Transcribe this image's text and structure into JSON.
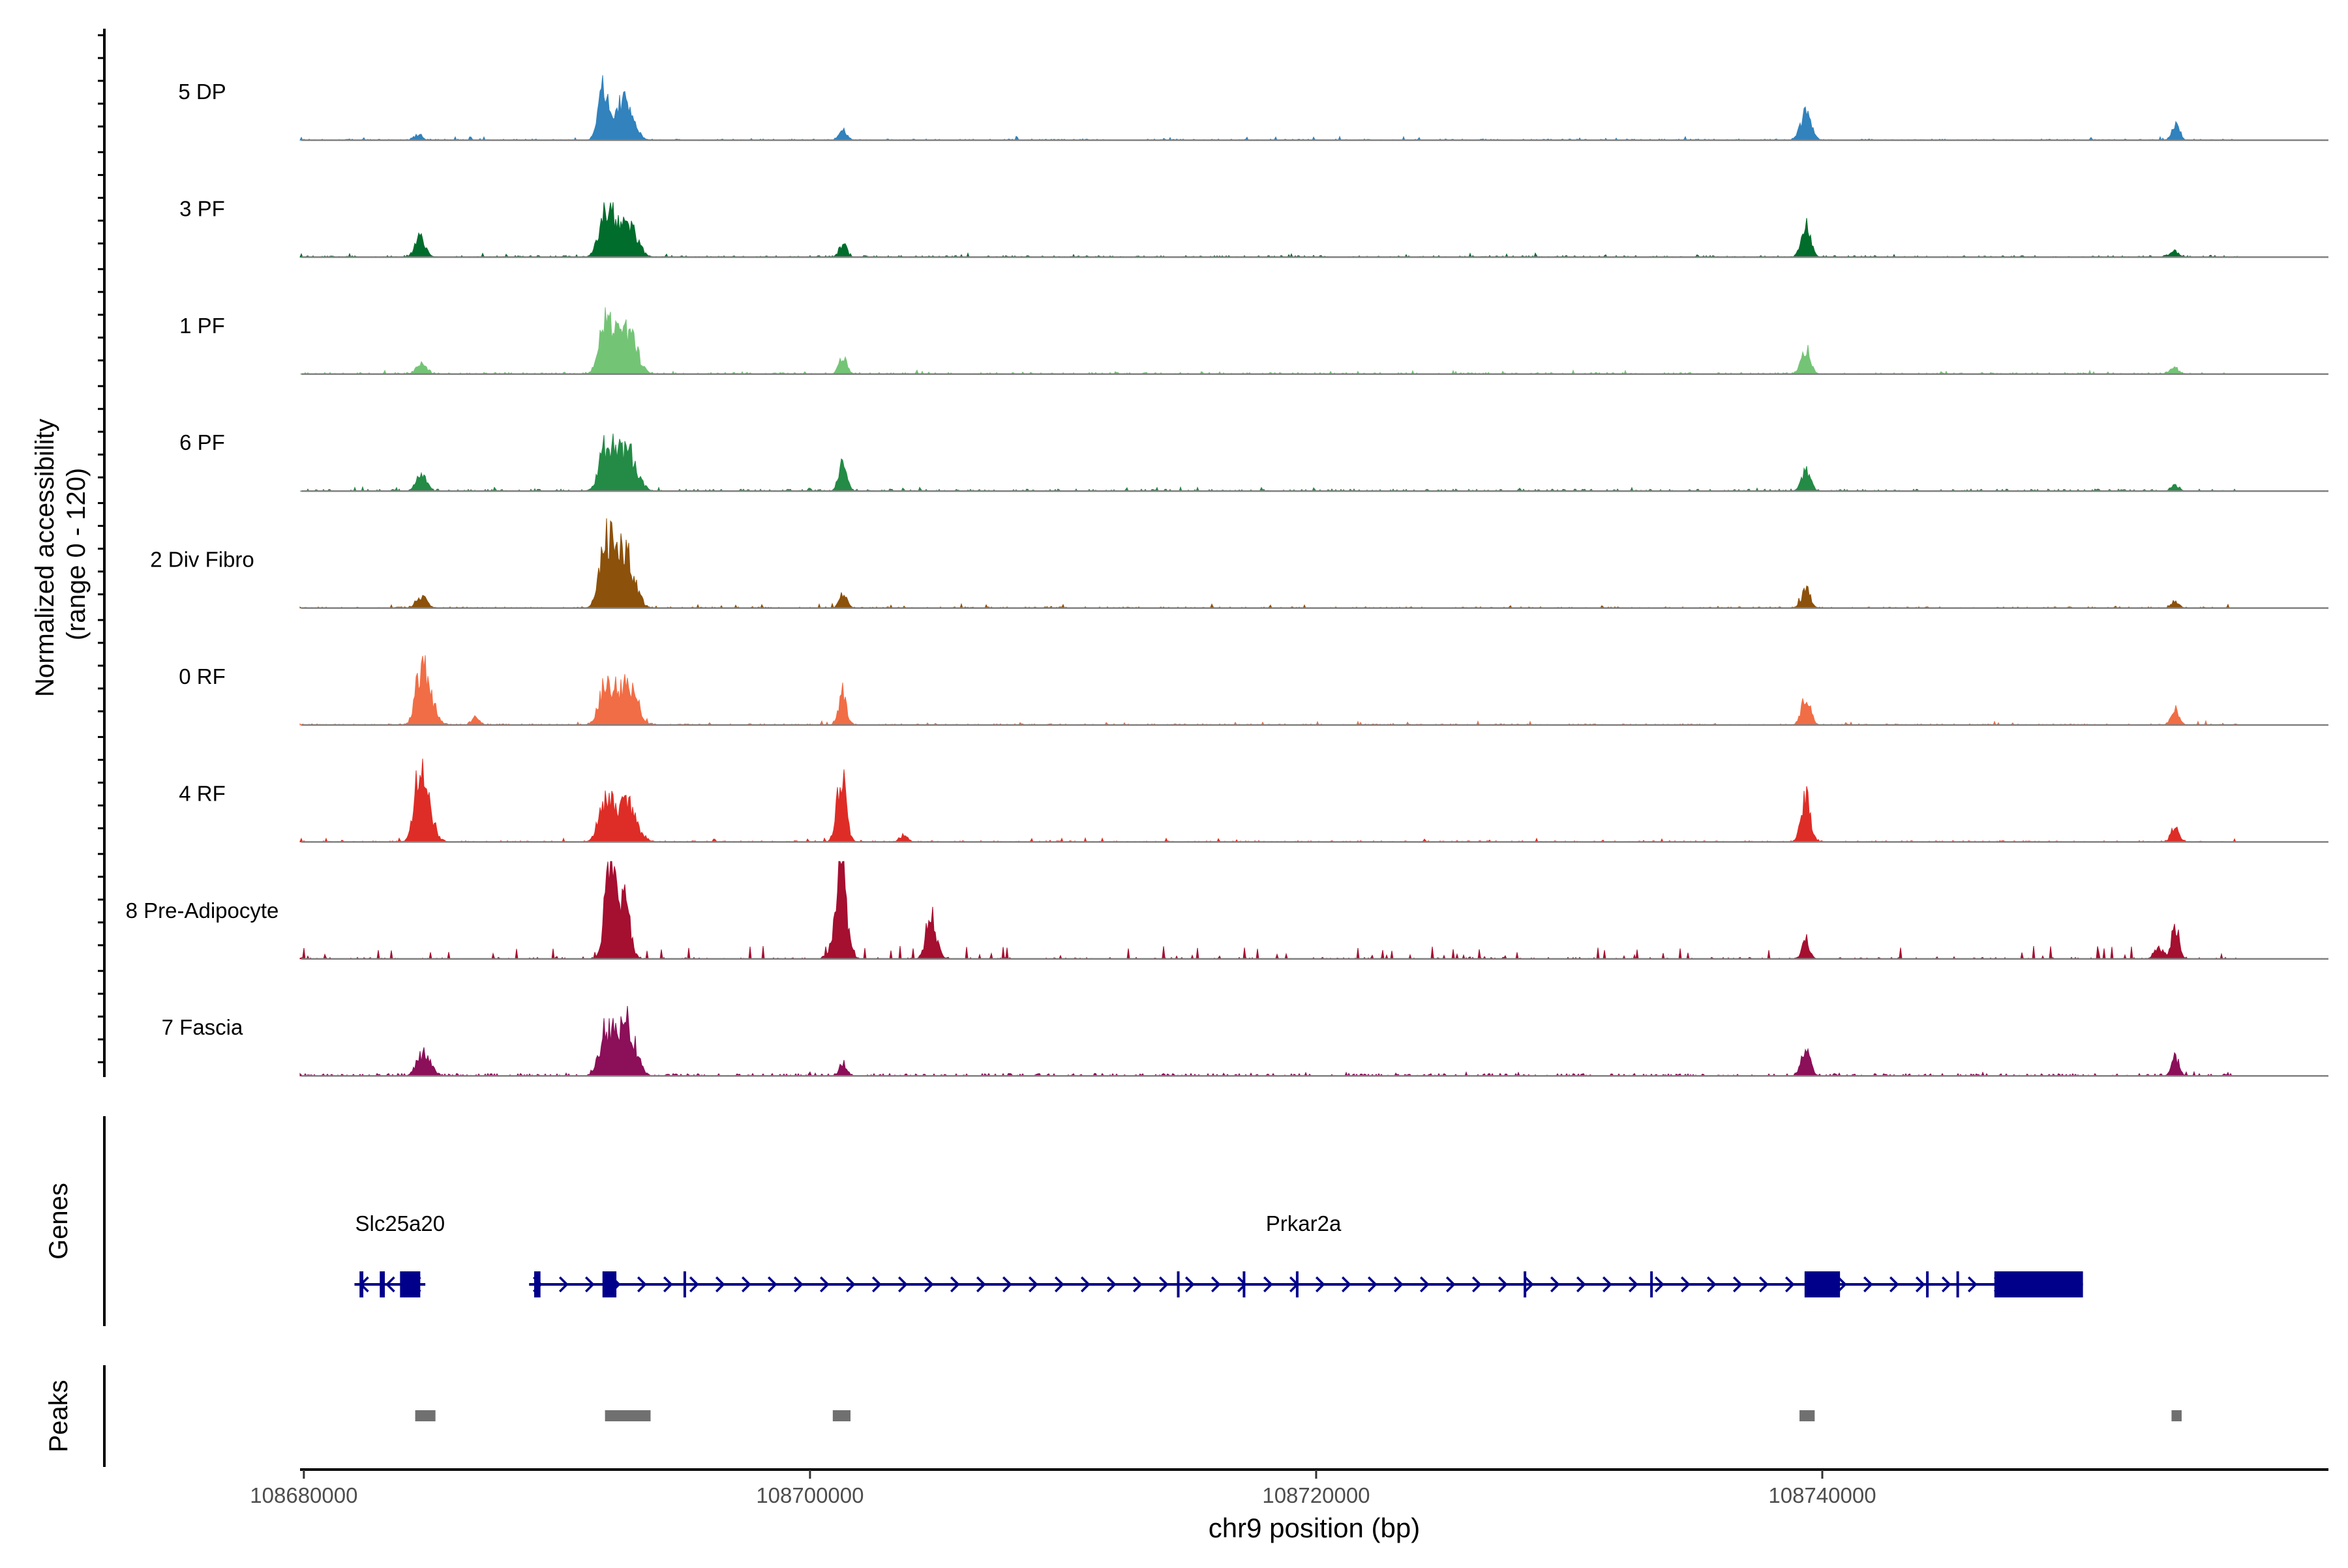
{
  "chart_data": {
    "type": "area",
    "title": "",
    "region": "chr9",
    "xlabel": "chr9 position (bp)",
    "ylabel_line1": "Normalized accessibility",
    "ylabel_line2": "(range 0 - 120)",
    "ylim": [
      0,
      120
    ],
    "xlim": [
      108679900,
      108760000
    ],
    "x_ticks": [
      108680000,
      108700000,
      108720000,
      108740000
    ],
    "x_tick_labels": [
      "108680000",
      "108700000",
      "108720000",
      "108740000"
    ],
    "tracks": [
      {
        "name": "5 DP",
        "color": "#3182bd",
        "peaks": [
          [
            108684500,
            8,
            150
          ],
          [
            108691850,
            70,
            200
          ],
          [
            108692550,
            38,
            300
          ],
          [
            108692850,
            22,
            300
          ],
          [
            108701300,
            14,
            150
          ],
          [
            108739350,
            38,
            200
          ],
          [
            108753950,
            20,
            150
          ]
        ],
        "baseline": 1.5
      },
      {
        "name": "3 PF",
        "color": "#006d2c",
        "peaks": [
          [
            108684600,
            28,
            200
          ],
          [
            108691900,
            52,
            250
          ],
          [
            108692300,
            34,
            300
          ],
          [
            108692900,
            38,
            300
          ],
          [
            108701300,
            18,
            150
          ],
          [
            108739350,
            42,
            180
          ],
          [
            108753900,
            10,
            150
          ]
        ],
        "baseline": 2
      },
      {
        "name": "1 PF",
        "color": "#74c476",
        "peaks": [
          [
            108684650,
            14,
            200
          ],
          [
            108691900,
            60,
            250
          ],
          [
            108692350,
            42,
            300
          ],
          [
            108692900,
            48,
            300
          ],
          [
            108701300,
            26,
            150
          ],
          [
            108739350,
            36,
            180
          ],
          [
            108753900,
            9,
            150
          ]
        ],
        "baseline": 2
      },
      {
        "name": "6 PF",
        "color": "#238b45",
        "peaks": [
          [
            108684650,
            24,
            200
          ],
          [
            108691900,
            52,
            250
          ],
          [
            108692350,
            40,
            300
          ],
          [
            108692900,
            46,
            300
          ],
          [
            108701300,
            44,
            150
          ],
          [
            108739350,
            28,
            180
          ],
          [
            108753950,
            8,
            150
          ]
        ],
        "baseline": 2.5
      },
      {
        "name": "2 Div Fibro",
        "color": "#8c510a",
        "peaks": [
          [
            108684650,
            18,
            200
          ],
          [
            108691950,
            92,
            250
          ],
          [
            108692450,
            48,
            300
          ],
          [
            108692850,
            50,
            300
          ],
          [
            108701300,
            20,
            150
          ],
          [
            108739350,
            26,
            180
          ],
          [
            108753950,
            9,
            150
          ]
        ],
        "baseline": 1.5
      },
      {
        "name": "0 RF",
        "color": "#f16d45",
        "peaks": [
          [
            108684600,
            68,
            200
          ],
          [
            108684950,
            40,
            250
          ],
          [
            108686800,
            10,
            150
          ],
          [
            108691900,
            46,
            250
          ],
          [
            108692350,
            34,
            300
          ],
          [
            108692900,
            50,
            300
          ],
          [
            108701300,
            46,
            150
          ],
          [
            108739350,
            38,
            180
          ],
          [
            108753950,
            22,
            150
          ]
        ],
        "baseline": 1.5
      },
      {
        "name": "4 RF",
        "color": "#de2d26",
        "peaks": [
          [
            108684500,
            78,
            180
          ],
          [
            108684850,
            56,
            250
          ],
          [
            108691900,
            56,
            250
          ],
          [
            108692400,
            32,
            300
          ],
          [
            108692900,
            44,
            300
          ],
          [
            108701250,
            94,
            180
          ],
          [
            108703700,
            10,
            150
          ],
          [
            108739350,
            62,
            180
          ],
          [
            108753950,
            22,
            150
          ]
        ],
        "baseline": 1.5
      },
      {
        "name": "8 Pre-Adipocyte",
        "color": "#a50f30",
        "peaks": [
          [
            108692100,
            100,
            200
          ],
          [
            108692700,
            62,
            200
          ],
          [
            108692300,
            46,
            300
          ],
          [
            108701250,
            94,
            150
          ],
          [
            108701200,
            70,
            250
          ],
          [
            108704800,
            58,
            200
          ],
          [
            108739350,
            28,
            150
          ],
          [
            108753950,
            46,
            150
          ],
          [
            108753300,
            14,
            200
          ]
        ],
        "baseline": 3,
        "spiky": true
      },
      {
        "name": "7 Fascia",
        "color": "#8b0f59",
        "peaks": [
          [
            108684600,
            22,
            200
          ],
          [
            108684900,
            20,
            200
          ],
          [
            108691900,
            54,
            250
          ],
          [
            108692400,
            42,
            300
          ],
          [
            108692850,
            56,
            300
          ],
          [
            108701300,
            18,
            150
          ],
          [
            108739350,
            34,
            180
          ],
          [
            108753950,
            26,
            150
          ]
        ],
        "baseline": 3
      }
    ],
    "genes_label": "Genes",
    "genes": [
      {
        "name": "Slc25a20",
        "start": 108682000,
        "end": 108684800,
        "strand": "-",
        "exons": [
          [
            108682200,
            108682350
          ],
          [
            108683000,
            108683200
          ],
          [
            108683800,
            108684600
          ]
        ]
      },
      {
        "name": "Prkar2a",
        "start": 108688900,
        "end": 108750300,
        "strand": "+",
        "exons": [
          [
            108689100,
            108689350
          ],
          [
            108691800,
            108692350
          ],
          [
            108695000,
            108695080
          ],
          [
            108714500,
            108714540
          ],
          [
            108717100,
            108717160
          ],
          [
            108719200,
            108719260
          ],
          [
            108728200,
            108728260
          ],
          [
            108733200,
            108733260
          ],
          [
            108739300,
            108740700
          ],
          [
            108744100,
            108744160
          ],
          [
            108745300,
            108745380
          ],
          [
            108746800,
            108750300
          ]
        ]
      }
    ],
    "peaks_label": "Peaks",
    "peak_regions": [
      [
        108684400,
        108685200
      ],
      [
        108691900,
        108693700
      ],
      [
        108700900,
        108701600
      ],
      [
        108739100,
        108739700
      ],
      [
        108753800,
        108754200
      ]
    ]
  }
}
